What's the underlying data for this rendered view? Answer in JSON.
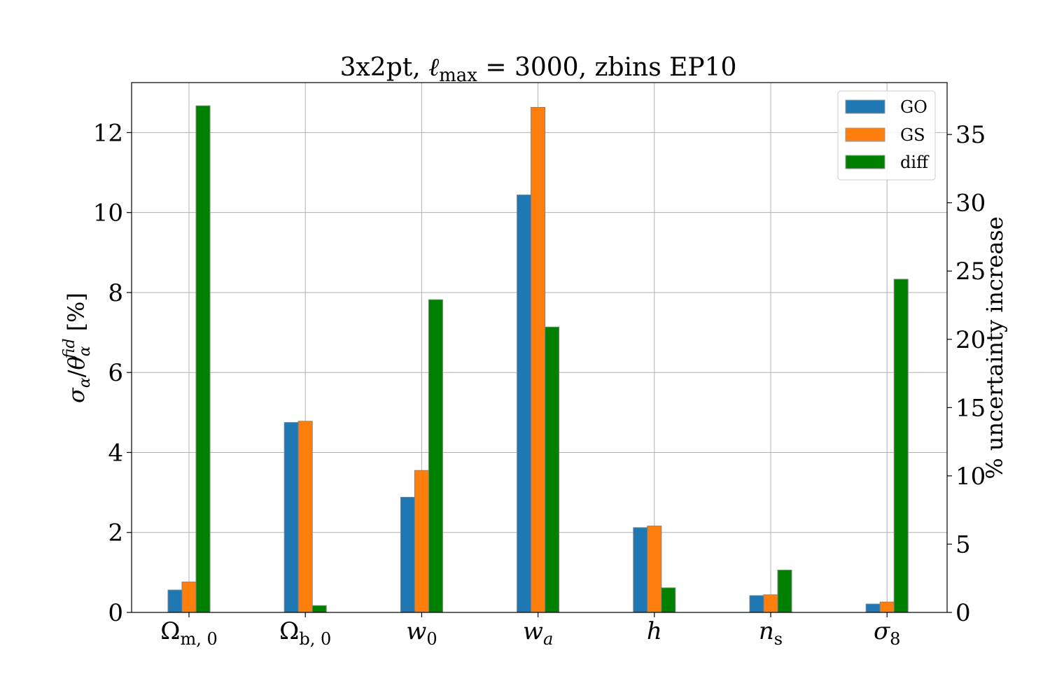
{
  "chart_data": {
    "type": "bar",
    "title": "3x2pt, ℓmax = 3000, zbins EP10",
    "title_parts": {
      "prefix": "3x2pt, ",
      "ell": "ℓ",
      "ell_sub": "max",
      "suffix": " = 3000, zbins EP10"
    },
    "categories": [
      "Ωm, 0",
      "Ωb, 0",
      "w0",
      "wa",
      "h",
      "ns",
      "σ8"
    ],
    "category_parts": [
      {
        "main": "Ω",
        "sub": "m, 0",
        "italic": false
      },
      {
        "main": "Ω",
        "sub": "b, 0",
        "italic": false
      },
      {
        "main": "w",
        "sub": "0",
        "italic": true
      },
      {
        "main": "w",
        "sub": "a",
        "italic": true
      },
      {
        "main": "h",
        "sub": "",
        "italic": true
      },
      {
        "main": "n",
        "sub": "s",
        "italic": true
      },
      {
        "main": "σ",
        "sub": "8",
        "italic": true
      }
    ],
    "series": [
      {
        "name": "GO",
        "axis": "left",
        "color": "#1f77b4",
        "values": [
          0.56,
          4.75,
          2.88,
          10.44,
          2.12,
          0.42,
          0.21
        ]
      },
      {
        "name": "GS",
        "axis": "left",
        "color": "#ff7f0e",
        "values": [
          0.76,
          4.78,
          3.55,
          12.63,
          2.16,
          0.44,
          0.26
        ]
      },
      {
        "name": "diff",
        "axis": "right",
        "color": "#008000",
        "values": [
          37.1,
          0.5,
          22.9,
          20.9,
          1.8,
          3.1,
          24.4
        ]
      }
    ],
    "ylabel": "σα/θαfid [%]",
    "ylabel_parts": {
      "sigma": "σ",
      "sigma_sub": "α",
      "slash": "/",
      "theta": "θ",
      "theta_sub": "α",
      "theta_sup": "fid",
      "unit": " [%]"
    },
    "ylabel_right": "% uncertainty increase",
    "ylim": [
      0,
      13.25
    ],
    "ylim_right": [
      0,
      38.8
    ],
    "yticks": [
      0,
      2,
      4,
      6,
      8,
      10,
      12
    ],
    "yticks_right": [
      0,
      5,
      10,
      15,
      20,
      25,
      30,
      35
    ],
    "grid": true,
    "legend_position": "top-right"
  }
}
